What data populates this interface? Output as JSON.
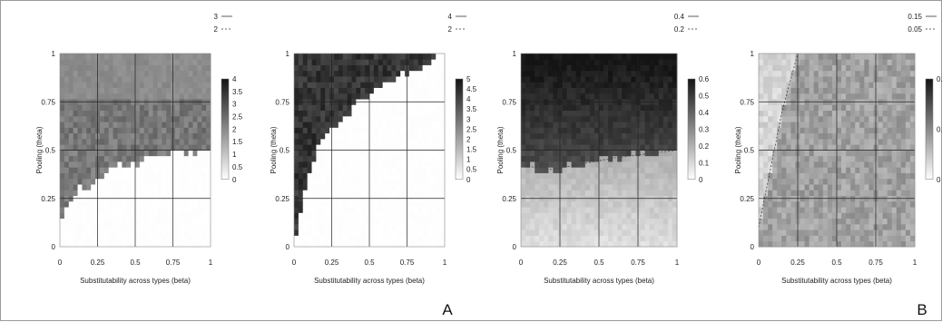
{
  "chart_data": [
    {
      "type": "heatmap",
      "xlabel": "Substitutability across types (beta)",
      "ylabel": "Pooling (theta)",
      "xlim": [
        0,
        1
      ],
      "ylim": [
        0,
        1
      ],
      "xticks": [
        "0",
        "0.25",
        "0.5",
        "0.75",
        "1"
      ],
      "yticks": [
        "0",
        "0.25",
        "0.5",
        "0.75",
        "1"
      ],
      "grid": true,
      "colorbar": {
        "min": 0,
        "max": 4,
        "ticks": [
          "4",
          "3.5",
          "3",
          "2.5",
          "2",
          "1.5",
          "1",
          "0.5",
          "0"
        ]
      },
      "contour_legend": [
        {
          "label": "3",
          "style": "solid"
        },
        {
          "label": "2",
          "style": "dashed"
        }
      ],
      "boundary": [
        [
          0,
          0.1
        ],
        [
          0.05,
          0.2
        ],
        [
          0.1,
          0.27
        ],
        [
          0.2,
          0.33
        ],
        [
          0.3,
          0.38
        ],
        [
          0.4,
          0.42
        ],
        [
          0.5,
          0.44
        ],
        [
          0.6,
          0.46
        ],
        [
          0.7,
          0.47
        ],
        [
          0.8,
          0.48
        ],
        [
          0.9,
          0.49
        ],
        [
          1,
          0.5
        ]
      ],
      "upper_value": 2.3,
      "lower_value": 0
    },
    {
      "type": "heatmap",
      "xlabel": "Substitutability across types (beta)",
      "ylabel": "Pooling (theta)",
      "xlim": [
        0,
        1
      ],
      "ylim": [
        0,
        1
      ],
      "xticks": [
        "0",
        "0.25",
        "0.5",
        "0.75",
        "1"
      ],
      "yticks": [
        "0",
        "0.25",
        "0.5",
        "0.75",
        "1"
      ],
      "grid": true,
      "colorbar": {
        "min": 0,
        "max": 5,
        "ticks": [
          "5",
          "4.5",
          "4",
          "3.5",
          "3",
          "2.5",
          "2",
          "1.5",
          "1",
          "0.5",
          "0"
        ]
      },
      "contour_legend": [
        {
          "label": "4",
          "style": "solid"
        },
        {
          "label": "2",
          "style": "dashed"
        }
      ],
      "boundary": [
        [
          0,
          0
        ],
        [
          0.05,
          0.2
        ],
        [
          0.1,
          0.38
        ],
        [
          0.15,
          0.5
        ],
        [
          0.2,
          0.58
        ],
        [
          0.3,
          0.66
        ],
        [
          0.4,
          0.72
        ],
        [
          0.5,
          0.78
        ],
        [
          0.6,
          0.84
        ],
        [
          0.7,
          0.88
        ],
        [
          0.8,
          0.92
        ],
        [
          0.9,
          0.96
        ],
        [
          1,
          1
        ]
      ],
      "upper_value": 4.3,
      "lower_value": 0
    },
    {
      "type": "heatmap",
      "xlabel": "Substitutability across types (beta)",
      "ylabel": "Pooling (theta)",
      "xlim": [
        0,
        1
      ],
      "ylim": [
        0,
        1
      ],
      "xticks": [
        "0",
        "0.25",
        "0.5",
        "0.75",
        "1"
      ],
      "yticks": [
        "0",
        "0.25",
        "0.5",
        "0.75",
        "1"
      ],
      "grid": true,
      "colorbar": {
        "min": 0,
        "max": 0.6,
        "ticks": [
          "0.6",
          "0.5",
          "0.4",
          "0.3",
          "0.2",
          "0.1",
          "0"
        ]
      },
      "contour_legend": [
        {
          "label": "0.4",
          "style": "solid"
        },
        {
          "label": "0.2",
          "style": "dashed"
        }
      ],
      "boundary": [
        [
          0,
          0.42
        ],
        [
          0.2,
          0.4
        ],
        [
          0.4,
          0.43
        ],
        [
          0.6,
          0.46
        ],
        [
          0.8,
          0.48
        ],
        [
          1,
          0.5
        ]
      ],
      "upper_value": 0.48,
      "lower_value": 0.08
    },
    {
      "type": "heatmap",
      "xlabel": "Substitutability across types (beta)",
      "ylabel": "Pooling (theta)",
      "xlim": [
        0,
        1
      ],
      "ylim": [
        0,
        1
      ],
      "xticks": [
        "0",
        "0.25",
        "0.5",
        "0.75",
        "1"
      ],
      "yticks": [
        "0",
        "0.25",
        "0.5",
        "0.75",
        "1"
      ],
      "grid": true,
      "colorbar": {
        "min": 0,
        "max": 0.2,
        "ticks": [
          "0.2",
          "0.1",
          "0"
        ]
      },
      "contour_legend": [
        {
          "label": "0.15",
          "style": "solid"
        },
        {
          "label": "0.05",
          "style": "dashed"
        }
      ],
      "boundary": [
        [
          0,
          0.1
        ],
        [
          0.05,
          0.3
        ],
        [
          0.1,
          0.5
        ],
        [
          0.15,
          0.7
        ],
        [
          0.2,
          0.85
        ],
        [
          0.25,
          1
        ]
      ],
      "upper_value": 0.1,
      "lower_value": 0.05
    }
  ],
  "panel_labels": [
    "A",
    "B"
  ]
}
